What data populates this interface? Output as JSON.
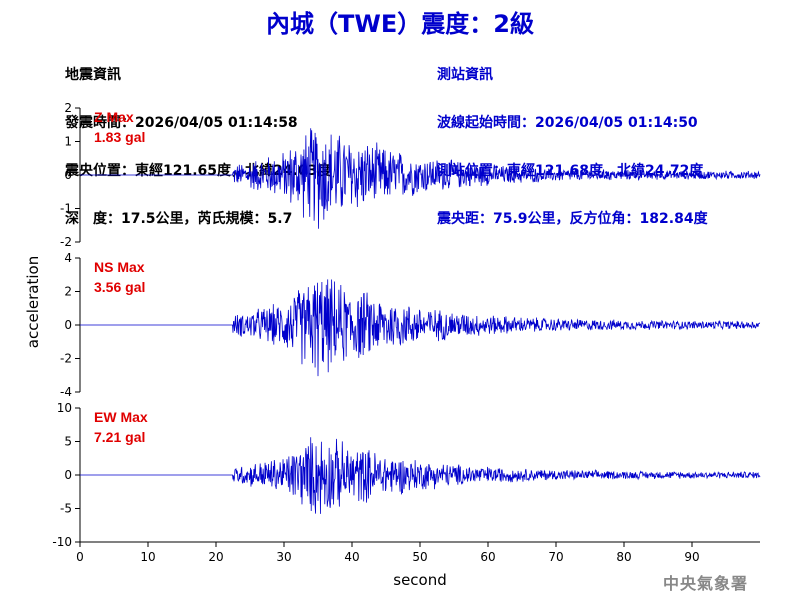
{
  "title": "內城（TWE）震度：2級",
  "quake_info": {
    "heading": "地震資訊",
    "origin_time": "發震時間：2026/04/05 01:14:58",
    "epicenter": "震央位置：東經121.65度，北緯24.03度",
    "depth_mag": "深　度：17.5公里，芮氏規模：5.7"
  },
  "station_info": {
    "heading": "測站資訊",
    "onset_time": "波線起始時間：2026/04/05 01:14:50",
    "location": "測站位置：東經121.68度，北緯24.72度",
    "distance": "震央距：75.9公里，反方位角：182.84度"
  },
  "credit": "中央氣象署",
  "colors": {
    "title": "#0000cc",
    "trace": "#0000cc",
    "max_label": "#e00000",
    "credit": "#888888"
  },
  "chart_data": {
    "type": "line",
    "xlabel": "second",
    "ylabel": "acceleration",
    "xlim": [
      0,
      100
    ],
    "x_ticks": [
      "0",
      "10",
      "20",
      "30",
      "40",
      "50",
      "60",
      "70",
      "80",
      "90"
    ],
    "onset_second": 22.5,
    "series": [
      {
        "name": "Z Max",
        "max_label": "Z Max",
        "max_value": "1.83 gal",
        "ylim": [
          -2,
          2
        ],
        "y_ticks": [
          "2",
          "1",
          "0",
          "-1",
          "-2"
        ],
        "peak": 1.83
      },
      {
        "name": "NS Max",
        "max_label": "NS Max",
        "max_value": "3.56 gal",
        "ylim": [
          -4,
          4
        ],
        "y_ticks": [
          "4",
          "2",
          "0",
          "-2",
          "-4"
        ],
        "peak": 3.56
      },
      {
        "name": "EW Max",
        "max_label": "EW Max",
        "max_value": "7.21 gal",
        "ylim": [
          -10,
          10
        ],
        "y_ticks": [
          "10",
          "5",
          "0",
          "-5",
          "-10"
        ],
        "peak": 7.21
      }
    ]
  }
}
